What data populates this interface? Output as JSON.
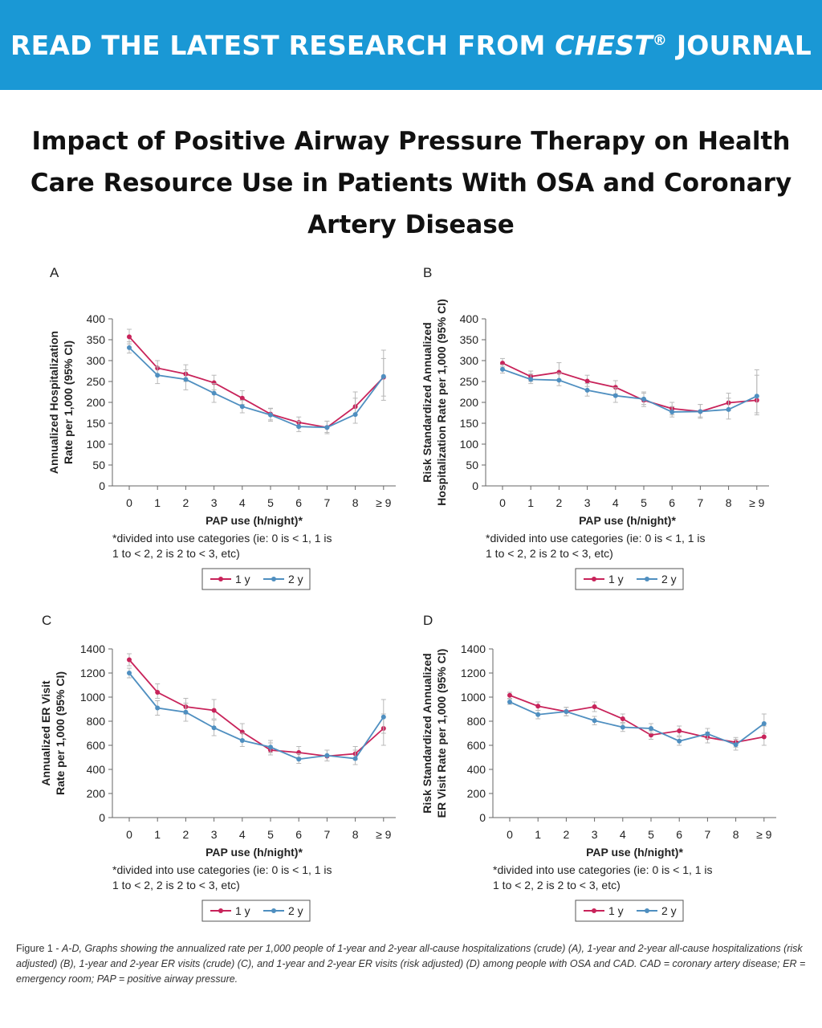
{
  "banner": {
    "prefix": "READ THE LATEST RESEARCH FROM ",
    "journal": "CHEST",
    "registered": "®",
    "suffix": " JOURNAL",
    "bg_color": "#1a98d5"
  },
  "title": "Impact of Positive Airway Pressure Therapy on Health Care Resource Use in Patients With OSA and Coronary Artery Disease",
  "chart_data": [
    {
      "type": "line",
      "panel": "A",
      "ylabel": [
        "Annualized Hospitalization",
        "Rate per 1,000 (95% CI)"
      ],
      "xlabel": "PAP use (h/night)*",
      "footnote": [
        "*divided into use categories (ie: 0 is < 1, 1 is",
        "1 to < 2, 2 is 2 to < 3, etc)"
      ],
      "categories": [
        "0",
        "1",
        "2",
        "3",
        "4",
        "5",
        "6",
        "7",
        "8",
        "≥ 9"
      ],
      "ylim": [
        0,
        400
      ],
      "yticks": [
        0,
        50,
        100,
        150,
        200,
        250,
        300,
        350,
        400
      ],
      "series": [
        {
          "name": "1 y",
          "color": "#c8235a",
          "values": [
            357,
            282,
            268,
            247,
            210,
            172,
            152,
            140,
            190,
            260
          ],
          "ci_low": [
            340,
            265,
            250,
            230,
            195,
            158,
            140,
            128,
            170,
            215
          ],
          "ci_high": [
            375,
            300,
            290,
            265,
            228,
            186,
            165,
            155,
            210,
            305
          ]
        },
        {
          "name": "2 y",
          "color": "#4f8fc0",
          "values": [
            331,
            265,
            255,
            222,
            190,
            170,
            142,
            140,
            171,
            262
          ],
          "ci_low": [
            318,
            245,
            230,
            200,
            175,
            155,
            130,
            125,
            150,
            205
          ],
          "ci_high": [
            345,
            285,
            278,
            245,
            205,
            185,
            155,
            155,
            225,
            325
          ]
        }
      ],
      "legend": "bottom"
    },
    {
      "type": "line",
      "panel": "B",
      "ylabel": [
        "Risk Standardized Annualized",
        "Hospitalization Rate per 1,000 (95% CI)"
      ],
      "xlabel": "PAP use (h/night)*",
      "footnote": [
        "*divided into use categories (ie: 0 is < 1, 1 is",
        "1 to < 2, 2 is 2 to < 3, etc)"
      ],
      "categories": [
        "0",
        "1",
        "2",
        "3",
        "4",
        "5",
        "6",
        "7",
        "8",
        "≥ 9"
      ],
      "ylim": [
        0,
        400
      ],
      "yticks": [
        0,
        50,
        100,
        150,
        200,
        250,
        300,
        350,
        400
      ],
      "series": [
        {
          "name": "1 y",
          "color": "#c8235a",
          "values": [
            294,
            262,
            272,
            251,
            236,
            205,
            185,
            178,
            199,
            205
          ],
          "ci_low": [
            285,
            250,
            255,
            238,
            220,
            190,
            170,
            165,
            180,
            175
          ],
          "ci_high": [
            305,
            275,
            295,
            265,
            252,
            225,
            200,
            195,
            222,
            265
          ]
        },
        {
          "name": "2 y",
          "color": "#4f8fc0",
          "values": [
            279,
            255,
            253,
            229,
            216,
            208,
            177,
            178,
            183,
            215
          ],
          "ci_low": [
            270,
            245,
            240,
            215,
            200,
            195,
            165,
            162,
            160,
            170
          ],
          "ci_high": [
            290,
            268,
            270,
            245,
            235,
            222,
            190,
            195,
            210,
            278
          ]
        }
      ],
      "legend": "bottom"
    },
    {
      "type": "line",
      "panel": "C",
      "ylabel": [
        "Annualized ER Visit",
        "Rate per 1,000 (95% CI)"
      ],
      "xlabel": "PAP use (h/night)*",
      "footnote": [
        "*divided into use categories (ie: 0 is < 1, 1 is",
        "1 to < 2, 2 is 2 to < 3, etc)"
      ],
      "categories": [
        "0",
        "1",
        "2",
        "3",
        "4",
        "5",
        "6",
        "7",
        "8",
        "≥ 9"
      ],
      "ylim": [
        0,
        1400
      ],
      "yticks": [
        0,
        200,
        400,
        600,
        800,
        1000,
        1200,
        1400
      ],
      "series": [
        {
          "name": "1 y",
          "color": "#c8235a",
          "values": [
            1310,
            1040,
            920,
            890,
            710,
            560,
            540,
            510,
            530,
            740
          ],
          "ci_low": [
            1260,
            990,
            860,
            820,
            650,
            520,
            500,
            470,
            480,
            600
          ],
          "ci_high": [
            1360,
            1110,
            990,
            980,
            780,
            620,
            590,
            560,
            590,
            860
          ]
        },
        {
          "name": "2 y",
          "color": "#4f8fc0",
          "values": [
            1200,
            910,
            875,
            745,
            640,
            585,
            485,
            515,
            490,
            835
          ],
          "ci_low": [
            1160,
            850,
            800,
            680,
            590,
            540,
            450,
            470,
            440,
            700
          ],
          "ci_high": [
            1240,
            970,
            950,
            810,
            700,
            640,
            530,
            560,
            560,
            980
          ]
        }
      ],
      "legend": "bottom"
    },
    {
      "type": "line",
      "panel": "D",
      "ylabel": [
        "Risk Standardized Annualized",
        "ER Visit Rate per 1,000 (95% CI)"
      ],
      "xlabel": "PAP use (h/night)*",
      "footnote": [
        "*divided into use categories (ie: 0 is < 1, 1 is",
        "1 to < 2, 2 is 2 to < 3, etc)"
      ],
      "categories": [
        "0",
        "1",
        "2",
        "3",
        "4",
        "5",
        "6",
        "7",
        "8",
        "≥ 9"
      ],
      "ylim": [
        0,
        1400
      ],
      "yticks": [
        0,
        200,
        400,
        600,
        800,
        1000,
        1200,
        1400
      ],
      "series": [
        {
          "name": "1 y",
          "color": "#c8235a",
          "values": [
            1015,
            925,
            880,
            920,
            820,
            685,
            720,
            665,
            625,
            670
          ],
          "ci_low": [
            990,
            890,
            845,
            880,
            780,
            650,
            680,
            620,
            585,
            600
          ],
          "ci_high": [
            1040,
            960,
            915,
            960,
            860,
            720,
            760,
            710,
            665,
            760
          ]
        },
        {
          "name": "2 y",
          "color": "#4f8fc0",
          "values": [
            960,
            855,
            880,
            805,
            750,
            740,
            635,
            695,
            605,
            780
          ],
          "ci_low": [
            940,
            820,
            845,
            770,
            715,
            700,
            600,
            655,
            560,
            700
          ],
          "ci_high": [
            985,
            890,
            915,
            840,
            790,
            780,
            670,
            740,
            650,
            860
          ]
        }
      ],
      "legend": "bottom"
    }
  ],
  "caption": {
    "fig_label": "Figure 1 - ",
    "text": "A-D, Graphs showing the annualized rate per 1,000 people of 1-year and 2-year all-cause hospitalizations (crude) (A), 1-year and 2-year all-cause hospitalizations (risk adjusted) (B), 1-year and 2-year ER visits (crude) (C), and 1-year and 2-year ER visits (risk adjusted) (D) among people with OSA and CAD. CAD = coronary artery disease; ER = emergency room; PAP = positive airway pressure."
  }
}
